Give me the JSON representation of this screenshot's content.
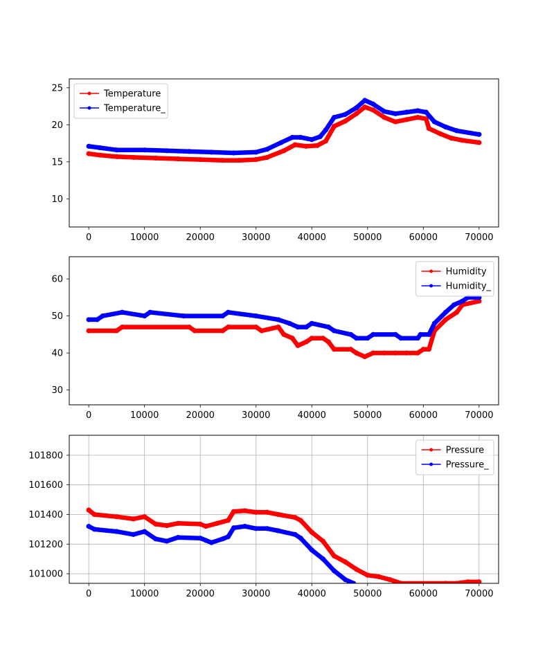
{
  "figure": {
    "background": "#ffffff"
  },
  "chart_data": [
    {
      "type": "line",
      "title": "",
      "xlabel": "",
      "ylabel": "",
      "xlim": [
        -3500,
        73500
      ],
      "ylim": [
        6.2,
        26.2
      ],
      "grid": false,
      "legend_position": "top-left",
      "x_ticks": [
        0,
        10000,
        20000,
        30000,
        40000,
        50000,
        60000,
        70000
      ],
      "x_tick_labels": [
        "0",
        "10000",
        "20000",
        "30000",
        "40000",
        "50000",
        "60000",
        "70000"
      ],
      "y_ticks": [
        10,
        15,
        20,
        25
      ],
      "y_tick_labels": [
        "10",
        "15",
        "20",
        "25"
      ],
      "series": [
        {
          "name": "Temperature",
          "color": "#ff0000",
          "points": [
            [
              0,
              16.1
            ],
            [
              2000,
              15.9
            ],
            [
              5000,
              15.7
            ],
            [
              8000,
              15.6
            ],
            [
              12000,
              15.5
            ],
            [
              16000,
              15.4
            ],
            [
              20000,
              15.3
            ],
            [
              24000,
              15.2
            ],
            [
              27000,
              15.2
            ],
            [
              30000,
              15.3
            ],
            [
              32000,
              15.6
            ],
            [
              35000,
              16.5
            ],
            [
              37000,
              17.3
            ],
            [
              39000,
              17.1
            ],
            [
              41000,
              17.2
            ],
            [
              42500,
              17.8
            ],
            [
              44000,
              19.8
            ],
            [
              46000,
              20.5
            ],
            [
              48000,
              21.5
            ],
            [
              49500,
              22.4
            ],
            [
              51000,
              22.0
            ],
            [
              53000,
              21.0
            ],
            [
              55000,
              20.4
            ],
            [
              57000,
              20.7
            ],
            [
              59000,
              21.0
            ],
            [
              60500,
              20.8
            ],
            [
              61000,
              19.5
            ],
            [
              63000,
              18.8
            ],
            [
              65000,
              18.2
            ],
            [
              67000,
              17.9
            ],
            [
              70000,
              17.6
            ]
          ]
        },
        {
          "name": "Temperature_",
          "color": "#0000ff",
          "points": [
            [
              0,
              17.1
            ],
            [
              2000,
              16.9
            ],
            [
              5000,
              16.6
            ],
            [
              10000,
              16.6
            ],
            [
              14000,
              16.5
            ],
            [
              18000,
              16.4
            ],
            [
              22000,
              16.3
            ],
            [
              26000,
              16.2
            ],
            [
              30000,
              16.3
            ],
            [
              32000,
              16.7
            ],
            [
              34500,
              17.6
            ],
            [
              36500,
              18.3
            ],
            [
              38000,
              18.3
            ],
            [
              40000,
              18.0
            ],
            [
              41500,
              18.4
            ],
            [
              42500,
              19.3
            ],
            [
              44000,
              21.0
            ],
            [
              46000,
              21.4
            ],
            [
              48000,
              22.3
            ],
            [
              49500,
              23.3
            ],
            [
              51000,
              22.8
            ],
            [
              53000,
              21.8
            ],
            [
              55000,
              21.5
            ],
            [
              57000,
              21.7
            ],
            [
              59000,
              21.9
            ],
            [
              60500,
              21.7
            ],
            [
              62000,
              20.4
            ],
            [
              64000,
              19.7
            ],
            [
              66000,
              19.2
            ],
            [
              70000,
              18.7
            ]
          ]
        }
      ]
    },
    {
      "type": "line",
      "title": "",
      "xlabel": "",
      "ylabel": "",
      "xlim": [
        -3500,
        73500
      ],
      "ylim": [
        26,
        66
      ],
      "grid": false,
      "legend_position": "top-right",
      "x_ticks": [
        0,
        10000,
        20000,
        30000,
        40000,
        50000,
        60000,
        70000
      ],
      "x_tick_labels": [
        "0",
        "10000",
        "20000",
        "30000",
        "40000",
        "50000",
        "60000",
        "70000"
      ],
      "y_ticks": [
        30,
        40,
        50,
        60
      ],
      "y_tick_labels": [
        "30",
        "40",
        "50",
        "60"
      ],
      "series": [
        {
          "name": "Humidity",
          "color": "#ff0000",
          "points": [
            [
              0,
              46
            ],
            [
              5000,
              46
            ],
            [
              6000,
              47
            ],
            [
              18000,
              47
            ],
            [
              19000,
              46
            ],
            [
              24000,
              46
            ],
            [
              25000,
              47
            ],
            [
              30000,
              47
            ],
            [
              31000,
              46
            ],
            [
              34000,
              47
            ],
            [
              35000,
              45
            ],
            [
              36500,
              44
            ],
            [
              37500,
              42
            ],
            [
              39000,
              43
            ],
            [
              40000,
              44
            ],
            [
              42000,
              44
            ],
            [
              43000,
              43
            ],
            [
              44000,
              41
            ],
            [
              47000,
              41
            ],
            [
              48000,
              40
            ],
            [
              49500,
              39
            ],
            [
              51000,
              40
            ],
            [
              53000,
              40
            ],
            [
              55000,
              40
            ],
            [
              57000,
              40
            ],
            [
              59000,
              40
            ],
            [
              60000,
              41
            ],
            [
              61000,
              41
            ],
            [
              62000,
              46
            ],
            [
              64000,
              49
            ],
            [
              66000,
              51
            ],
            [
              67000,
              53
            ],
            [
              70000,
              54
            ]
          ]
        },
        {
          "name": "Humidity_",
          "color": "#0000ff",
          "points": [
            [
              0,
              49
            ],
            [
              1500,
              49
            ],
            [
              2500,
              50
            ],
            [
              6000,
              51
            ],
            [
              10000,
              50
            ],
            [
              11000,
              51
            ],
            [
              17000,
              50
            ],
            [
              24000,
              50
            ],
            [
              25000,
              51
            ],
            [
              30000,
              50
            ],
            [
              34000,
              49
            ],
            [
              36000,
              48
            ],
            [
              37500,
              47
            ],
            [
              39000,
              47
            ],
            [
              40000,
              48
            ],
            [
              43000,
              47
            ],
            [
              44000,
              46
            ],
            [
              47000,
              45
            ],
            [
              48000,
              44
            ],
            [
              50000,
              44
            ],
            [
              51000,
              45
            ],
            [
              55000,
              45
            ],
            [
              56000,
              44
            ],
            [
              59000,
              44
            ],
            [
              59500,
              45
            ],
            [
              61000,
              45
            ],
            [
              62000,
              48
            ],
            [
              64000,
              51
            ],
            [
              65500,
              53
            ],
            [
              67000,
              54
            ],
            [
              68000,
              55
            ],
            [
              70000,
              55
            ]
          ]
        }
      ]
    },
    {
      "type": "line",
      "title": "",
      "xlabel": "",
      "ylabel": "",
      "xlim": [
        -3500,
        73500
      ],
      "ylim": [
        100935,
        101935
      ],
      "grid": true,
      "legend_position": "top-right",
      "x_ticks": [
        0,
        10000,
        20000,
        30000,
        40000,
        50000,
        60000,
        70000
      ],
      "x_tick_labels": [
        "0",
        "10000",
        "20000",
        "30000",
        "40000",
        "50000",
        "60000",
        "70000"
      ],
      "y_ticks": [
        101000,
        101200,
        101400,
        101600,
        101800
      ],
      "y_tick_labels": [
        "101000",
        "101200",
        "101400",
        "101600",
        "101800"
      ],
      "series": [
        {
          "name": "Pressure",
          "color": "#ff0000",
          "points": [
            [
              0,
              101430
            ],
            [
              1000,
              101400
            ],
            [
              5000,
              101385
            ],
            [
              8000,
              101370
            ],
            [
              10000,
              101385
            ],
            [
              12000,
              101335
            ],
            [
              14000,
              101325
            ],
            [
              16000,
              101340
            ],
            [
              20000,
              101335
            ],
            [
              21000,
              101320
            ],
            [
              23000,
              101340
            ],
            [
              25000,
              101360
            ],
            [
              26000,
              101420
            ],
            [
              28000,
              101425
            ],
            [
              30000,
              101415
            ],
            [
              32000,
              101415
            ],
            [
              34000,
              101400
            ],
            [
              37000,
              101380
            ],
            [
              38000,
              101360
            ],
            [
              40000,
              101280
            ],
            [
              42000,
              101220
            ],
            [
              44000,
              101120
            ],
            [
              46000,
              101080
            ],
            [
              48000,
              101030
            ],
            [
              50000,
              100990
            ],
            [
              52000,
              100980
            ],
            [
              54000,
              100960
            ],
            [
              56000,
              100935
            ],
            [
              64000,
              100935
            ],
            [
              66000,
              100935
            ],
            [
              68000,
              100945
            ],
            [
              70000,
              100945
            ]
          ]
        },
        {
          "name": "Pressure_",
          "color": "#0000ff",
          "points": [
            [
              0,
              101320
            ],
            [
              1000,
              101300
            ],
            [
              5000,
              101285
            ],
            [
              8000,
              101265
            ],
            [
              10000,
              101285
            ],
            [
              12000,
              101235
            ],
            [
              14000,
              101220
            ],
            [
              16000,
              101245
            ],
            [
              20000,
              101240
            ],
            [
              21000,
              101225
            ],
            [
              22000,
              101210
            ],
            [
              24000,
              101235
            ],
            [
              25000,
              101250
            ],
            [
              26000,
              101310
            ],
            [
              28000,
              101320
            ],
            [
              30000,
              101305
            ],
            [
              32000,
              101305
            ],
            [
              34000,
              101290
            ],
            [
              37000,
              101265
            ],
            [
              38000,
              101240
            ],
            [
              40000,
              101160
            ],
            [
              42000,
              101100
            ],
            [
              44000,
              101020
            ],
            [
              46000,
              100960
            ],
            [
              47500,
              100935
            ]
          ]
        }
      ]
    }
  ]
}
